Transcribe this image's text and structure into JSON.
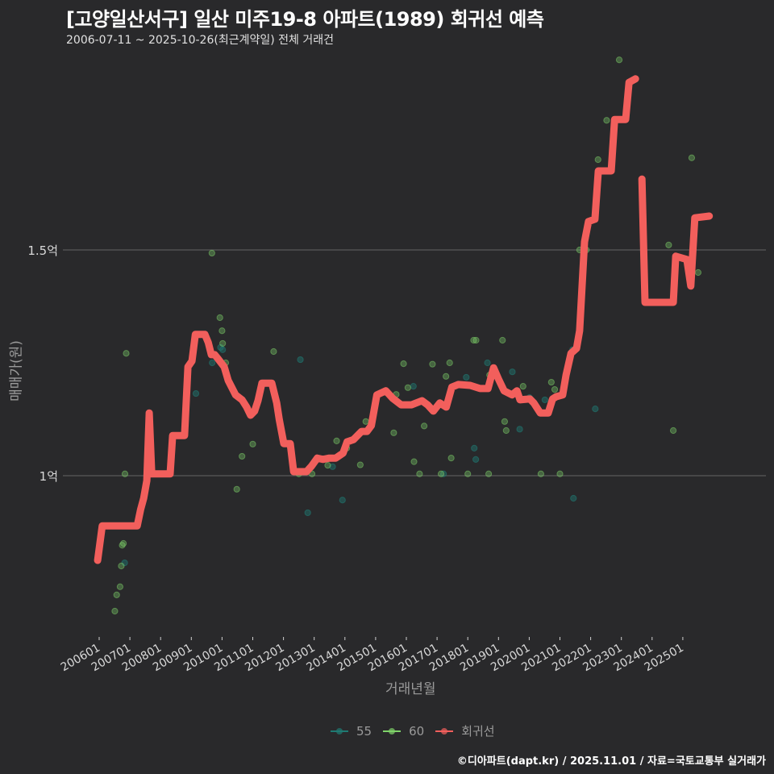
{
  "header": {
    "title": "[고양일산서구] 일산 미주19-8 아파트(1989) 회귀선 예측",
    "subtitle": "2006-07-11 ~ 2025-10-26(최근계약일) 전체 거래건"
  },
  "axes": {
    "ylabel": "매매가(원)",
    "xlabel": "거래년월",
    "yticks": [
      {
        "label": "1억",
        "value": 1.0
      },
      {
        "label": "1.5억",
        "value": 1.5
      }
    ],
    "xticks": [
      "200601",
      "200701",
      "200801",
      "200901",
      "201001",
      "201101",
      "201201",
      "201301",
      "201401",
      "201501",
      "201601",
      "201701",
      "201801",
      "201901",
      "202001",
      "202101",
      "202201",
      "202301",
      "202401",
      "202501"
    ]
  },
  "legend": [
    {
      "label": "55",
      "color": "#1f7a73"
    },
    {
      "label": "60",
      "color": "#7fd36a"
    },
    {
      "label": "회귀선",
      "color": "#f25f5c"
    }
  ],
  "caption": "©디아파트(dapt.kr) / 2025.11.01 / 자료=국토교통부 실거래가",
  "colors": {
    "background": "#29292b",
    "grid": "#5a5a5a",
    "line": "#f25f5c",
    "s55": "#1f7a73",
    "s60": "#7fd36a"
  },
  "chart_data": {
    "type": "scatter+line",
    "title": "[고양일산서구] 일산 미주19-8 아파트(1989) 회귀선 예측",
    "subtitle": "2006-07-11 ~ 2025-10-26(최근계약일) 전체 거래건",
    "xlabel": "거래년월",
    "ylabel": "매매가(원)",
    "ylim": [
      0.64,
      1.97
    ],
    "xlim": [
      2005.3,
      2026.0
    ],
    "units": "억원",
    "grid": true,
    "legend_position": "bottom",
    "series": [
      {
        "name": "회귀선",
        "type": "line",
        "segments": [
          [
            [
              2005.95,
              0.8125
            ],
            [
              2006.1,
              0.889
            ],
            [
              2007.24,
              0.889
            ],
            [
              2007.35,
              0.925
            ],
            [
              2007.45,
              0.95
            ],
            [
              2007.55,
              0.989
            ],
            [
              2007.63,
              1.139
            ],
            [
              2007.71,
              1.004
            ],
            [
              2008.31,
              1.004
            ],
            [
              2008.39,
              1.089
            ],
            [
              2008.78,
              1.089
            ],
            [
              2008.89,
              1.241
            ],
            [
              2009.02,
              1.254
            ],
            [
              2009.13,
              1.313
            ],
            [
              2009.44,
              1.313
            ],
            [
              2009.55,
              1.295
            ],
            [
              2009.65,
              1.268
            ],
            [
              2009.76,
              1.268
            ],
            [
              2009.87,
              1.259
            ],
            [
              2010.07,
              1.241
            ],
            [
              2010.2,
              1.211
            ],
            [
              2010.44,
              1.179
            ],
            [
              2010.65,
              1.168
            ],
            [
              2010.8,
              1.152
            ],
            [
              2010.93,
              1.134
            ],
            [
              2011.06,
              1.143
            ],
            [
              2011.17,
              1.166
            ],
            [
              2011.3,
              1.205
            ],
            [
              2011.62,
              1.205
            ],
            [
              2011.78,
              1.161
            ],
            [
              2011.86,
              1.125
            ],
            [
              2012.01,
              1.071
            ],
            [
              2012.22,
              1.071
            ],
            [
              2012.33,
              1.009
            ],
            [
              2012.75,
              1.009
            ],
            [
              2012.91,
              1.021
            ],
            [
              2013.1,
              1.039
            ],
            [
              2013.28,
              1.036
            ],
            [
              2013.49,
              1.039
            ],
            [
              2013.7,
              1.039
            ],
            [
              2013.94,
              1.05
            ],
            [
              2014.07,
              1.075
            ],
            [
              2014.28,
              1.08
            ],
            [
              2014.54,
              1.098
            ],
            [
              2014.72,
              1.098
            ],
            [
              2014.86,
              1.111
            ],
            [
              2015.04,
              1.179
            ],
            [
              2015.33,
              1.188
            ],
            [
              2015.56,
              1.171
            ],
            [
              2015.83,
              1.157
            ],
            [
              2016.17,
              1.157
            ],
            [
              2016.51,
              1.166
            ],
            [
              2016.69,
              1.157
            ],
            [
              2016.88,
              1.143
            ],
            [
              2017.09,
              1.161
            ],
            [
              2017.3,
              1.152
            ],
            [
              2017.48,
              1.196
            ],
            [
              2017.69,
              1.202
            ],
            [
              2018.08,
              1.2
            ],
            [
              2018.4,
              1.193
            ],
            [
              2018.66,
              1.193
            ],
            [
              2018.84,
              1.239
            ],
            [
              2019.0,
              1.214
            ],
            [
              2019.18,
              1.188
            ],
            [
              2019.44,
              1.179
            ],
            [
              2019.6,
              1.188
            ],
            [
              2019.7,
              1.168
            ],
            [
              2020.02,
              1.17
            ],
            [
              2020.15,
              1.161
            ],
            [
              2020.36,
              1.139
            ],
            [
              2020.62,
              1.139
            ],
            [
              2020.76,
              1.17
            ],
            [
              2020.88,
              1.175
            ],
            [
              2021.09,
              1.179
            ],
            [
              2021.2,
              1.223
            ],
            [
              2021.36,
              1.271
            ],
            [
              2021.54,
              1.282
            ],
            [
              2021.64,
              1.321
            ],
            [
              2021.8,
              1.518
            ],
            [
              2021.93,
              1.563
            ],
            [
              2022.14,
              1.568
            ],
            [
              2022.25,
              1.675
            ],
            [
              2022.67,
              1.675
            ],
            [
              2022.78,
              1.789
            ],
            [
              2023.14,
              1.789
            ],
            [
              2023.25,
              1.871
            ],
            [
              2023.46,
              1.879
            ]
          ],
          [
            [
              2023.67,
              1.657
            ],
            [
              2023.77,
              1.384
            ],
            [
              2024.69,
              1.384
            ],
            [
              2024.77,
              1.486
            ],
            [
              2025.13,
              1.479
            ],
            [
              2025.26,
              1.42
            ],
            [
              2025.39,
              1.571
            ],
            [
              2025.86,
              1.575
            ]
          ]
        ]
      },
      {
        "name": "55",
        "type": "scatter",
        "points": [
          [
            2006.83,
            0.807
          ],
          [
            2009.15,
            1.182
          ],
          [
            2009.68,
            1.25
          ],
          [
            2009.95,
            1.284
          ],
          [
            2010.02,
            1.279
          ],
          [
            2012.55,
            1.257
          ],
          [
            2012.79,
            0.918
          ],
          [
            2013.6,
            1.02
          ],
          [
            2013.92,
            0.946
          ],
          [
            2016.23,
            1.198
          ],
          [
            2017.21,
            1.004
          ],
          [
            2017.95,
            1.218
          ],
          [
            2018.21,
            1.061
          ],
          [
            2018.26,
            1.036
          ],
          [
            2018.64,
            1.25
          ],
          [
            2019.45,
            1.23
          ],
          [
            2019.69,
            1.103
          ],
          [
            2020.01,
            1.173
          ],
          [
            2020.51,
            1.168
          ],
          [
            2021.41,
            1.279
          ],
          [
            2021.44,
            0.95
          ],
          [
            2022.15,
            1.148
          ]
        ]
      },
      {
        "name": "60",
        "type": "scatter",
        "points": [
          [
            2006.51,
            0.7
          ],
          [
            2006.57,
            0.736
          ],
          [
            2006.68,
            0.754
          ],
          [
            2006.72,
            0.8
          ],
          [
            2006.75,
            0.846
          ],
          [
            2006.79,
            0.85
          ],
          [
            2006.84,
            1.004
          ],
          [
            2006.88,
            1.271
          ],
          [
            2009.67,
            1.493
          ],
          [
            2009.93,
            1.35
          ],
          [
            2010.0,
            1.321
          ],
          [
            2010.02,
            1.293
          ],
          [
            2010.12,
            1.25
          ],
          [
            2010.48,
            0.97
          ],
          [
            2010.65,
            1.043
          ],
          [
            2011.0,
            1.07
          ],
          [
            2011.68,
            1.275
          ],
          [
            2012.5,
            1.004
          ],
          [
            2012.93,
            1.004
          ],
          [
            2013.44,
            1.023
          ],
          [
            2013.73,
            1.077
          ],
          [
            2014.06,
            1.061
          ],
          [
            2014.5,
            1.024
          ],
          [
            2014.68,
            1.12
          ],
          [
            2015.59,
            1.095
          ],
          [
            2015.67,
            1.18
          ],
          [
            2015.91,
            1.248
          ],
          [
            2016.05,
            1.195
          ],
          [
            2016.25,
            1.031
          ],
          [
            2016.43,
            1.004
          ],
          [
            2016.58,
            1.11
          ],
          [
            2016.85,
            1.247
          ],
          [
            2017.13,
            1.004
          ],
          [
            2017.29,
            1.22
          ],
          [
            2017.41,
            1.25
          ],
          [
            2017.46,
            1.039
          ],
          [
            2018.0,
            1.004
          ],
          [
            2018.19,
            1.3
          ],
          [
            2018.27,
            1.3
          ],
          [
            2018.68,
            1.004
          ],
          [
            2018.71,
            1.223
          ],
          [
            2019.13,
            1.3
          ],
          [
            2019.2,
            1.12
          ],
          [
            2019.25,
            1.1
          ],
          [
            2019.8,
            1.198
          ],
          [
            2020.38,
            1.004
          ],
          [
            2020.72,
            1.207
          ],
          [
            2020.83,
            1.191
          ],
          [
            2021.0,
            1.004
          ],
          [
            2021.64,
            1.5
          ],
          [
            2021.86,
            1.5
          ],
          [
            2022.24,
            1.7
          ],
          [
            2022.52,
            1.787
          ],
          [
            2022.93,
            1.921
          ],
          [
            2024.54,
            1.511
          ],
          [
            2024.69,
            1.1
          ],
          [
            2025.29,
            1.704
          ],
          [
            2025.5,
            1.45
          ]
        ]
      }
    ]
  }
}
